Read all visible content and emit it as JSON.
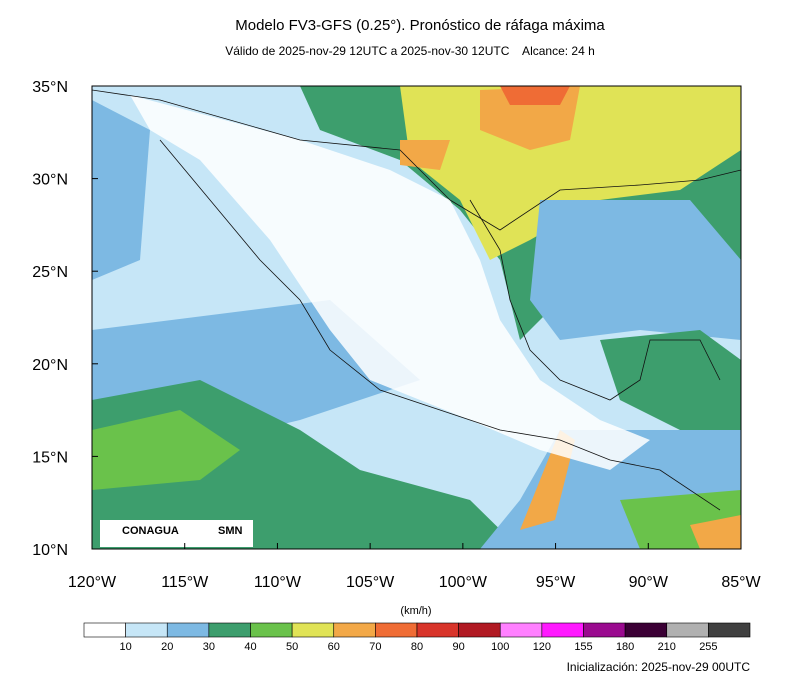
{
  "header": {
    "title": "Modelo FV3-GFS (0.25°). Pronóstico de ráfaga máxima",
    "subtitle": "Válido de 2025-nov-29 12UTC a 2025-nov-30 12UTC    Alcance: 24 h"
  },
  "map": {
    "lat_labels": [
      "35°N",
      "30°N",
      "25°N",
      "20°N",
      "15°N",
      "10°N"
    ],
    "lon_labels": [
      "120°W",
      "115°W",
      "110°W",
      "105°W",
      "100°W",
      "95°W",
      "90°W",
      "85°W"
    ],
    "logos": [
      "CONAGUA",
      "SMN"
    ]
  },
  "colorbar": {
    "unit": "(km/h)",
    "labels": [
      10,
      20,
      30,
      40,
      50,
      60,
      70,
      80,
      90,
      100,
      120,
      155,
      180,
      210,
      255
    ],
    "colors": [
      "#ffffff",
      "#c6e6f7",
      "#7db9e3",
      "#3d9e6d",
      "#6ac24b",
      "#e0e356",
      "#f2a847",
      "#ef6c35",
      "#d8342a",
      "#b11a23",
      "#ff80ff",
      "#ff1aff",
      "#9a0a8f",
      "#3b0035",
      "#b0b0b0",
      "#404040"
    ]
  },
  "footer": {
    "initialization": "Inicialización: 2025-nov-29 00UTC"
  }
}
